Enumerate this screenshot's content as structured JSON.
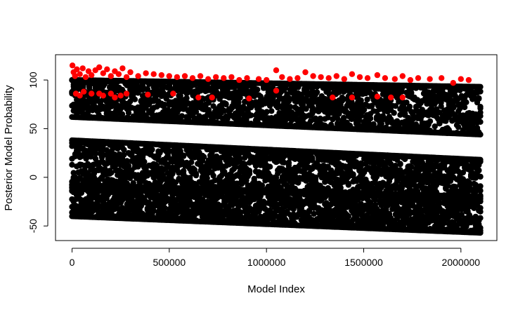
{
  "chart_data": {
    "type": "scatter",
    "xlabel": "Model Index",
    "ylabel": "Posterior Model Probability",
    "xlim": [
      -85000,
      2185000
    ],
    "ylim": [
      -65,
      126
    ],
    "x_ticks": [
      0,
      500000,
      1000000,
      1500000,
      2000000
    ],
    "x_tick_labels": [
      "0",
      "500000",
      "1000000",
      "1500000",
      "2000000"
    ],
    "y_ticks": [
      -50,
      0,
      50,
      100
    ],
    "y_tick_labels": [
      "-50",
      "0",
      "50",
      "100"
    ],
    "grid": false,
    "series": [
      {
        "color": "#000000",
        "bands": [
          {
            "x_range": [
              0,
              2100000
            ],
            "y_top_start": 100,
            "y_top_end": 93,
            "y_bottom_start": 62,
            "y_bottom_end": 44
          },
          {
            "x_range": [
              0,
              2100000
            ],
            "y_top_start": 38,
            "y_top_end": 18,
            "y_bottom_start": -8,
            "y_bottom_end": -20
          },
          {
            "x_range": [
              0,
              2100000
            ],
            "y_top_start": -10,
            "y_top_end": -22,
            "y_bottom_start": -40,
            "y_bottom_end": -57
          }
        ]
      },
      {
        "color": "#ff0000",
        "points": [
          [
            2000,
            115
          ],
          [
            8000,
            108
          ],
          [
            15000,
            104
          ],
          [
            25000,
            111
          ],
          [
            40000,
            106
          ],
          [
            55000,
            112
          ],
          [
            70000,
            103
          ],
          [
            85000,
            109
          ],
          [
            100000,
            105
          ],
          [
            120000,
            110
          ],
          [
            140000,
            113
          ],
          [
            160000,
            107
          ],
          [
            180000,
            111
          ],
          [
            200000,
            104
          ],
          [
            220000,
            109
          ],
          [
            240000,
            106
          ],
          [
            260000,
            112
          ],
          [
            280000,
            103
          ],
          [
            300000,
            108
          ],
          [
            340000,
            104
          ],
          [
            380000,
            107
          ],
          [
            420000,
            106
          ],
          [
            460000,
            105
          ],
          [
            500000,
            104
          ],
          [
            540000,
            103
          ],
          [
            580000,
            104
          ],
          [
            620000,
            102
          ],
          [
            660000,
            104
          ],
          [
            700000,
            101
          ],
          [
            740000,
            103
          ],
          [
            780000,
            102
          ],
          [
            820000,
            103
          ],
          [
            860000,
            100
          ],
          [
            900000,
            102
          ],
          [
            960000,
            101
          ],
          [
            1000000,
            100
          ],
          [
            1050000,
            110
          ],
          [
            1080000,
            103
          ],
          [
            1120000,
            101
          ],
          [
            1160000,
            102
          ],
          [
            1200000,
            108
          ],
          [
            1240000,
            104
          ],
          [
            1280000,
            103
          ],
          [
            1320000,
            102
          ],
          [
            1360000,
            104
          ],
          [
            1400000,
            101
          ],
          [
            1440000,
            106
          ],
          [
            1480000,
            103
          ],
          [
            1520000,
            102
          ],
          [
            1570000,
            105
          ],
          [
            1610000,
            102
          ],
          [
            1660000,
            101
          ],
          [
            1700000,
            104
          ],
          [
            1740000,
            100
          ],
          [
            1780000,
            102
          ],
          [
            1840000,
            101
          ],
          [
            1900000,
            102
          ],
          [
            1960000,
            97
          ],
          [
            2000000,
            101
          ],
          [
            2040000,
            100
          ],
          [
            20000,
            86
          ],
          [
            40000,
            84
          ],
          [
            60000,
            88
          ],
          [
            100000,
            86
          ],
          [
            140000,
            86
          ],
          [
            160000,
            84
          ],
          [
            200000,
            86
          ],
          [
            220000,
            82
          ],
          [
            250000,
            84
          ],
          [
            280000,
            86
          ],
          [
            390000,
            85
          ],
          [
            520000,
            86
          ],
          [
            650000,
            82
          ],
          [
            720000,
            82
          ],
          [
            910000,
            81
          ],
          [
            1050000,
            89
          ],
          [
            1340000,
            82
          ],
          [
            1440000,
            82
          ],
          [
            1570000,
            83
          ],
          [
            1640000,
            82
          ],
          [
            1700000,
            82
          ]
        ]
      }
    ]
  }
}
